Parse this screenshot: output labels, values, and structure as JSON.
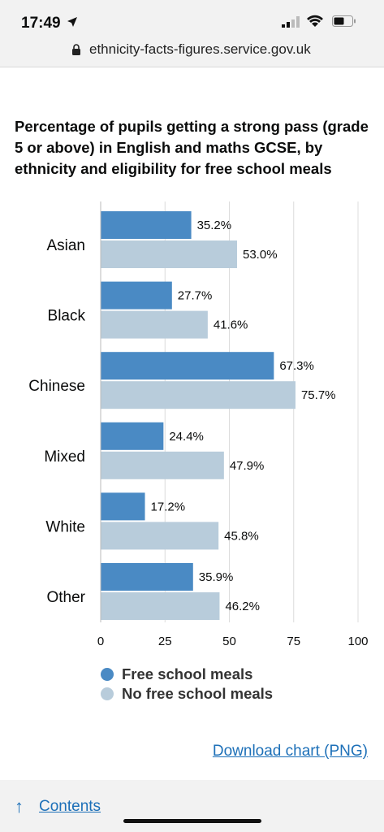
{
  "status_bar": {
    "time": "17:49"
  },
  "browser": {
    "url": "ethnicity-facts-figures.service.gov.uk"
  },
  "chart_title": "Percentage of pupils getting a strong pass (grade 5 or above) in English and maths GCSE, by ethnicity and eligibility for free school meals",
  "chart_data": {
    "type": "bar",
    "orientation": "horizontal",
    "title": "Percentage of pupils getting a strong pass (grade 5 or above) in English and maths GCSE, by ethnicity and eligibility for free school meals",
    "categories": [
      "Asian",
      "Black",
      "Chinese",
      "Mixed",
      "White",
      "Other"
    ],
    "series": [
      {
        "name": "Free school meals",
        "color": "#4a8ac4",
        "values": [
          35.2,
          27.7,
          67.3,
          24.4,
          17.2,
          35.9
        ]
      },
      {
        "name": "No free school meals",
        "color": "#b8ccdb",
        "values": [
          53.0,
          41.6,
          75.7,
          47.9,
          45.8,
          46.2
        ]
      }
    ],
    "data_labels": [
      [
        "35.2%",
        "27.7%",
        "67.3%",
        "24.4%",
        "17.2%",
        "35.9%"
      ],
      [
        "53.0%",
        "41.6%",
        "75.7%",
        "47.9%",
        "45.8%",
        "46.2%"
      ]
    ],
    "xlim": [
      0,
      100
    ],
    "xticks": [
      "0",
      "25",
      "50",
      "75",
      "100"
    ],
    "grid": true,
    "legend_position": "bottom-left"
  },
  "legend": [
    {
      "label": "Free school meals",
      "color": "#4a8ac4"
    },
    {
      "label": "No free school meals",
      "color": "#b8ccdb"
    }
  ],
  "download_link": "Download chart (PNG)",
  "footer": {
    "contents_link": "Contents"
  }
}
